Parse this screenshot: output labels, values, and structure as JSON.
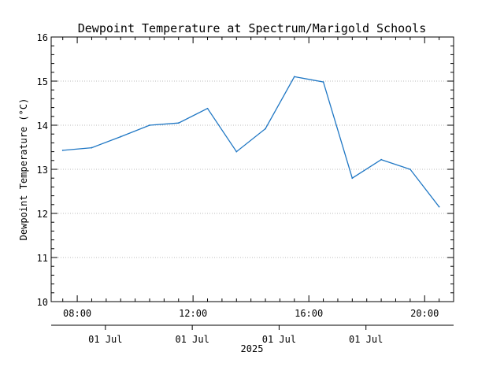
{
  "chart_data": {
    "type": "line",
    "title": "Dewpoint Temperature at Spectrum/Marigold Schools",
    "ylabel": "Dewpoint Temperature (°C)",
    "xlabel": "",
    "ylim": [
      10,
      16
    ],
    "yticks": [
      10,
      11,
      12,
      13,
      14,
      15,
      16
    ],
    "grid": true,
    "xlim_hours": [
      7.1,
      21.0
    ],
    "xticks": [
      {
        "hour": 8,
        "label": "08:00"
      },
      {
        "hour": 12,
        "label": "12:00"
      },
      {
        "hour": 16,
        "label": "16:00"
      },
      {
        "hour": 20,
        "label": "20:00"
      }
    ],
    "date_labels": [
      {
        "hour": 9.0,
        "label": "01 Jul"
      },
      {
        "hour": 12.0,
        "label": "01 Jul"
      },
      {
        "hour": 15.0,
        "label": "01 Jul"
      },
      {
        "hour": 18.0,
        "label": "01 Jul"
      }
    ],
    "year_label": "2025",
    "series": [
      {
        "color": "#1f77c4",
        "x_hours": [
          7.5,
          8.5,
          9.5,
          10.5,
          11.5,
          12.5,
          13.5,
          14.5,
          15.5,
          16.5,
          17.5,
          18.5,
          19.5,
          20.5
        ],
        "values": [
          13.43,
          13.49,
          13.74,
          14.0,
          14.05,
          14.38,
          13.4,
          13.92,
          15.1,
          14.98,
          12.8,
          13.22,
          13.0,
          12.15
        ]
      }
    ]
  }
}
